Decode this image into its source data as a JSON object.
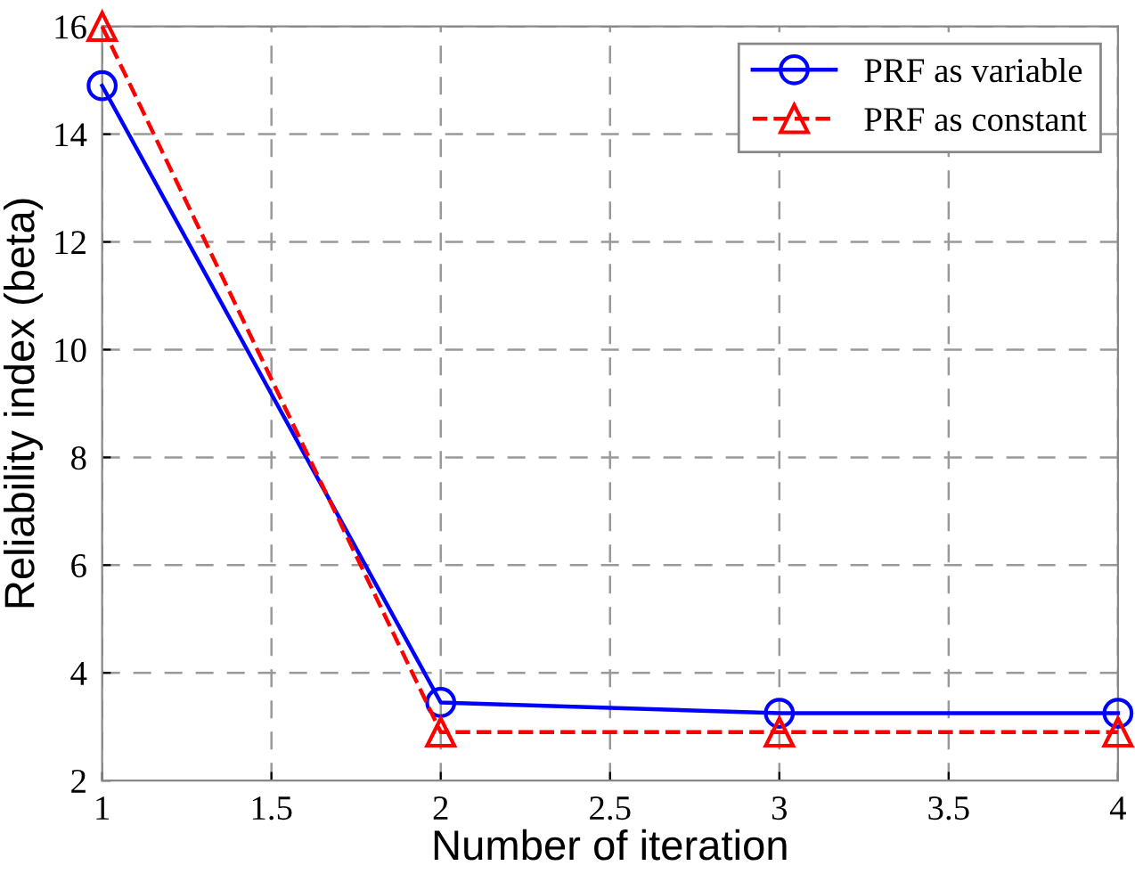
{
  "chart_data": {
    "type": "line",
    "xlabel": "Number of iteration",
    "ylabel": "Reliability index (beta)",
    "x": [
      1,
      2,
      3,
      4
    ],
    "series": [
      {
        "name": "PRF as variable",
        "color": "#0000ff",
        "values": [
          14.9,
          3.45,
          3.25,
          3.25
        ],
        "marker": "circle",
        "line_style": "solid"
      },
      {
        "name": "PRF as constant",
        "color": "#ff0000",
        "values": [
          16,
          2.9,
          2.9,
          2.9
        ],
        "marker": "triangle",
        "line_style": "dashed"
      }
    ],
    "xlim": [
      1,
      4
    ],
    "xticks": [
      1,
      1.5,
      2,
      2.5,
      3,
      3.5,
      4
    ],
    "ylim": [
      2,
      16
    ],
    "yticks": [
      2,
      4,
      6,
      8,
      10,
      12,
      14,
      16
    ],
    "grid": true,
    "legend": "top right"
  }
}
